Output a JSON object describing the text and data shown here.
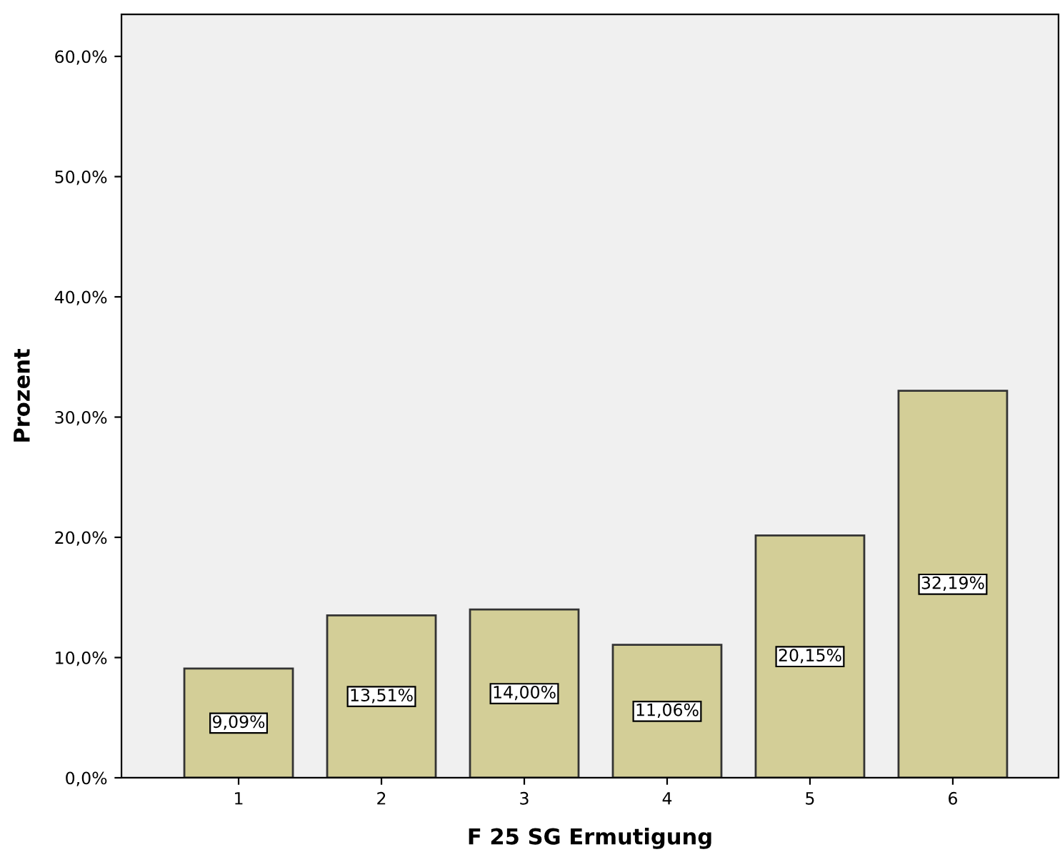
{
  "chart_data": {
    "type": "bar",
    "xlabel": "F 25 SG Ermutigung",
    "ylabel": "Prozent",
    "categories": [
      "1",
      "2",
      "3",
      "4",
      "5",
      "6"
    ],
    "values": [
      9.09,
      13.51,
      14.0,
      11.06,
      20.15,
      32.19
    ],
    "value_labels": [
      "9,09%",
      "13,51%",
      "14,00%",
      "11,06%",
      "20,15%",
      "32,19%"
    ],
    "color": "#d3ce97",
    "ylim": [
      0,
      63.5
    ],
    "yticks": [
      {
        "value": 0,
        "label": "0,0%"
      },
      {
        "value": 10,
        "label": "10,0%"
      },
      {
        "value": 20,
        "label": "20,0%"
      },
      {
        "value": 30,
        "label": "30,0%"
      },
      {
        "value": 40,
        "label": "40,0%"
      },
      {
        "value": 50,
        "label": "50,0%"
      },
      {
        "value": 60,
        "label": "60,0%"
      }
    ],
    "grid": false
  }
}
